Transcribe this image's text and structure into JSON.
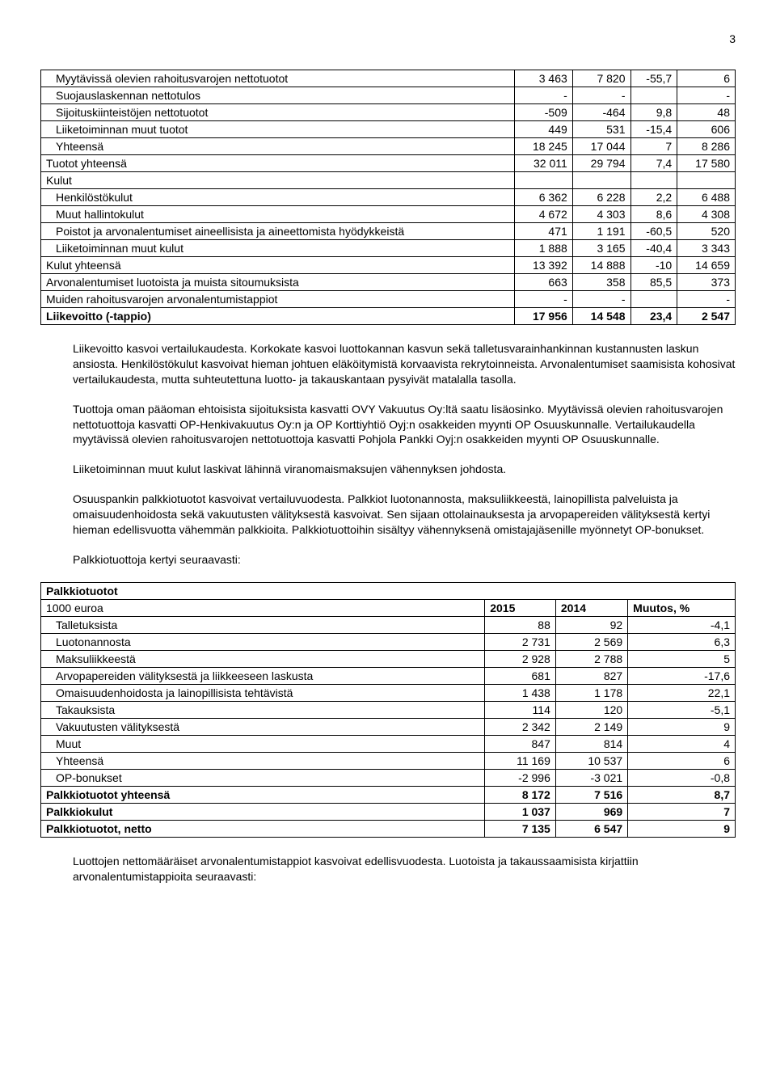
{
  "page_number": "3",
  "top_table": {
    "rows": [
      {
        "label": "Myytävissä olevien rahoitusvarojen nettotuotot",
        "c1": "3 463",
        "c2": "7 820",
        "c3": "-55,7",
        "c4": "6",
        "indent": 1
      },
      {
        "label": "Suojauslaskennan nettotulos",
        "c1": "-",
        "c2": "-",
        "c3": "",
        "c4": "-",
        "indent": 1
      },
      {
        "label": "Sijoituskiinteistöjen nettotuotot",
        "c1": "-509",
        "c2": "-464",
        "c3": "9,8",
        "c4": "48",
        "indent": 1
      },
      {
        "label": "Liiketoiminnan muut tuotot",
        "c1": "449",
        "c2": "531",
        "c3": "-15,4",
        "c4": "606",
        "indent": 1
      },
      {
        "label": "Yhteensä",
        "c1": "18 245",
        "c2": "17 044",
        "c3": "7",
        "c4": "8 286",
        "indent": 1
      },
      {
        "label": "Tuotot yhteensä",
        "c1": "32 011",
        "c2": "29 794",
        "c3": "7,4",
        "c4": "17 580",
        "indent": 0
      },
      {
        "label": "Kulut",
        "c1": "",
        "c2": "",
        "c3": "",
        "c4": "",
        "indent": 0
      },
      {
        "label": "Henkilöstökulut",
        "c1": "6 362",
        "c2": "6 228",
        "c3": "2,2",
        "c4": "6 488",
        "indent": 1
      },
      {
        "label": "Muut hallintokulut",
        "c1": "4 672",
        "c2": "4 303",
        "c3": "8,6",
        "c4": "4 308",
        "indent": 1
      },
      {
        "label": "Poistot ja arvonalentumiset aineellisista ja aineettomista hyödykkeistä",
        "c1": "471",
        "c2": "1 191",
        "c3": "-60,5",
        "c4": "520",
        "indent": 1
      },
      {
        "label": "Liiketoiminnan muut kulut",
        "c1": "1 888",
        "c2": "3 165",
        "c3": "-40,4",
        "c4": "3 343",
        "indent": 1
      },
      {
        "label": "Kulut yhteensä",
        "c1": "13 392",
        "c2": "14 888",
        "c3": "-10",
        "c4": "14 659",
        "indent": 0
      },
      {
        "label": "Arvonalentumiset luotoista ja muista sitoumuksista",
        "c1": "663",
        "c2": "358",
        "c3": "85,5",
        "c4": "373",
        "indent": 0
      },
      {
        "label": "Muiden rahoitusvarojen arvonalentumistappiot",
        "c1": "-",
        "c2": "-",
        "c3": "",
        "c4": "-",
        "indent": 0
      },
      {
        "label": "Liikevoitto (-tappio)",
        "c1": "17 956",
        "c2": "14 548",
        "c3": "23,4",
        "c4": "2 547",
        "indent": 0,
        "bold": true
      }
    ]
  },
  "paragraphs": [
    "Liikevoitto kasvoi vertailukaudesta. Korkokate kasvoi luottokannan kasvun sekä talletusvarainhankinnan kustannusten laskun ansiosta. Henkilöstökulut kasvoivat hieman johtuen eläköitymistä korvaavista rekrytoinneista. Arvonalentumiset saamisista kohosivat vertailukaudesta, mutta suhteutettuna luotto- ja takauskantaan pysyivät matalalla tasolla.",
    "Tuottoja oman pääoman ehtoisista sijoituksista kasvatti OVY Vakuutus Oy:ltä saatu lisäosinko. Myytävissä olevien rahoitusvarojen nettotuottoja kasvatti OP-Henkivakuutus Oy:n ja OP Korttiyhtiö Oyj:n osakkeiden myynti OP Osuuskunnalle. Vertailukaudella myytävissä olevien rahoitusvarojen nettotuottoja kasvatti Pohjola Pankki Oyj:n osakkeiden myynti OP Osuuskunnalle.",
    "Liiketoiminnan muut kulut laskivat lähinnä viranomaismaksujen vähennyksen johdosta.",
    "Osuuspankin palkkiotuotot kasvoivat vertailuvuodesta. Palkkiot luotonannosta, maksuliikkeestä, lainopillista palveluista ja omaisuudenhoidosta sekä vakuutusten välityksestä kasvoivat. Sen sijaan ottolainauksesta ja arvopapereiden välityksestä kertyi hieman edellisvuotta vähemmän palkkioita. Palkkiotuottoihin sisältyy vähennyksenä omistajajäsenille myönnetyt OP-bonukset.",
    "Palkkiotuottoja kertyi seuraavasti:"
  ],
  "fee_table": {
    "title": "Palkkiotuotot",
    "subtitle": "1000 euroa",
    "columns": [
      "2015",
      "2014",
      "Muutos, %"
    ],
    "rows": [
      {
        "label": "Talletuksista",
        "c1": "88",
        "c2": "92",
        "c3": "-4,1",
        "indent": 1
      },
      {
        "label": "Luotonannosta",
        "c1": "2 731",
        "c2": "2 569",
        "c3": "6,3",
        "indent": 1
      },
      {
        "label": "Maksuliikkeestä",
        "c1": "2 928",
        "c2": "2 788",
        "c3": "5",
        "indent": 1
      },
      {
        "label": "Arvopapereiden välityksestä ja liikkeeseen laskusta",
        "c1": "681",
        "c2": "827",
        "c3": "-17,6",
        "indent": 1
      },
      {
        "label": "Omaisuudenhoidosta ja lainopillisista tehtävistä",
        "c1": "1 438",
        "c2": "1 178",
        "c3": "22,1",
        "indent": 1
      },
      {
        "label": "Takauksista",
        "c1": "114",
        "c2": "120",
        "c3": "-5,1",
        "indent": 1
      },
      {
        "label": "Vakuutusten välityksestä",
        "c1": "2 342",
        "c2": "2 149",
        "c3": "9",
        "indent": 1
      },
      {
        "label": "Muut",
        "c1": "847",
        "c2": "814",
        "c3": "4",
        "indent": 1
      },
      {
        "label": "Yhteensä",
        "c1": "11 169",
        "c2": "10 537",
        "c3": "6",
        "indent": 1
      },
      {
        "label": "OP-bonukset",
        "c1": "-2 996",
        "c2": "-3 021",
        "c3": "-0,8",
        "indent": 1
      },
      {
        "label": "Palkkiotuotot yhteensä",
        "c1": "8 172",
        "c2": "7 516",
        "c3": "8,7",
        "indent": 0,
        "bold": true
      },
      {
        "label": "Palkkiokulut",
        "c1": "1 037",
        "c2": "969",
        "c3": "7",
        "indent": 0,
        "bold": true
      },
      {
        "label": "Palkkiotuotot, netto",
        "c1": "7 135",
        "c2": "6 547",
        "c3": "9",
        "indent": 0,
        "bold": true
      }
    ]
  },
  "closing": "Luottojen nettomääräiset arvonalentumistappiot kasvoivat edellisvuodesta. Luotoista ja takaussaamisista kirjattiin arvonalentumistappioita seuraavasti:"
}
